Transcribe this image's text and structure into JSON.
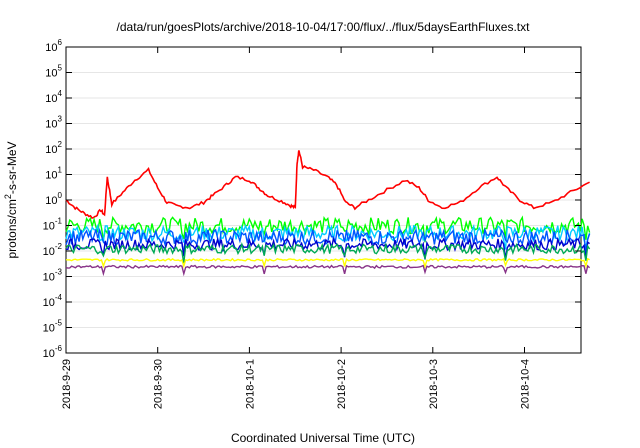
{
  "chart_data": {
    "type": "line",
    "title": "/data/run/goesPlots/archive/2018-10-04/17:00/flux/../flux/5daysEarthFluxes.txt",
    "xlabel": "Coordinated Universal Time (UTC)",
    "ylabel_main": "protons/cm",
    "ylabel_sup": "2",
    "ylabel_rest": "-s-sr-MeV",
    "y_scale": "log",
    "ylim": [
      1e-06,
      1000000.0
    ],
    "xlim": [
      "2018-09-29",
      "2018-10-04 17:00"
    ],
    "y_ticks": [
      {
        "base": "10",
        "exp": "-6",
        "value": 1e-06
      },
      {
        "base": "10",
        "exp": "-5",
        "value": 1e-05
      },
      {
        "base": "10",
        "exp": "-4",
        "value": 0.0001
      },
      {
        "base": "10",
        "exp": "-3",
        "value": 0.001
      },
      {
        "base": "10",
        "exp": "-2",
        "value": 0.01
      },
      {
        "base": "10",
        "exp": "-1",
        "value": 0.1
      },
      {
        "base": "10",
        "exp": "0",
        "value": 1
      },
      {
        "base": "10",
        "exp": "1",
        "value": 10
      },
      {
        "base": "10",
        "exp": "2",
        "value": 100
      },
      {
        "base": "10",
        "exp": "3",
        "value": 1000
      },
      {
        "base": "10",
        "exp": "4",
        "value": 10000
      },
      {
        "base": "10",
        "exp": "5",
        "value": 100000
      },
      {
        "base": "10",
        "exp": "6",
        "value": 1000000
      }
    ],
    "x_ticks": [
      {
        "label": "2018-9-29",
        "day": 0
      },
      {
        "label": "2018-9-30",
        "day": 1
      },
      {
        "label": "2018-10-1",
        "day": 2
      },
      {
        "label": "2018-10-2",
        "day": 3
      },
      {
        "label": "2018-10-3",
        "day": 4
      },
      {
        "label": "2018-10-4",
        "day": 5
      }
    ],
    "series": [
      {
        "color": "#ff0000",
        "kind": "red",
        "points": [
          [
            0,
            1.0
          ],
          [
            0.1,
            0.5
          ],
          [
            0.2,
            0.3
          ],
          [
            0.3,
            0.2
          ],
          [
            0.38,
            0.4
          ],
          [
            0.42,
            0.25
          ],
          [
            0.45,
            8.0
          ],
          [
            0.5,
            0.7
          ],
          [
            0.62,
            2.0
          ],
          [
            0.75,
            6.0
          ],
          [
            0.9,
            15.0
          ],
          [
            1.0,
            3.0
          ],
          [
            1.1,
            0.8
          ],
          [
            1.2,
            0.6
          ],
          [
            1.35,
            0.5
          ],
          [
            1.5,
            0.8
          ],
          [
            1.6,
            1.5
          ],
          [
            1.75,
            4.0
          ],
          [
            1.85,
            8.0
          ],
          [
            2.0,
            6.0
          ],
          [
            2.1,
            3.0
          ],
          [
            2.2,
            1.5
          ],
          [
            2.35,
            0.9
          ],
          [
            2.45,
            0.6
          ],
          [
            2.5,
            0.5
          ],
          [
            2.52,
            30.0
          ],
          [
            2.54,
            90.0
          ],
          [
            2.58,
            20.0
          ],
          [
            2.7,
            15.0
          ],
          [
            2.85,
            8.0
          ],
          [
            2.95,
            4.0
          ],
          [
            3.05,
            0.8
          ],
          [
            3.15,
            0.5
          ],
          [
            3.3,
            1.0
          ],
          [
            3.5,
            2.5
          ],
          [
            3.7,
            6.0
          ],
          [
            3.85,
            3.0
          ],
          [
            3.95,
            1.0
          ],
          [
            4.1,
            0.5
          ],
          [
            4.3,
            0.8
          ],
          [
            4.5,
            3.0
          ],
          [
            4.7,
            8.0
          ],
          [
            4.8,
            3.0
          ],
          [
            4.95,
            1.0
          ],
          [
            5.1,
            0.5
          ],
          [
            5.3,
            0.8
          ],
          [
            5.5,
            2.0
          ],
          [
            5.71,
            5.0
          ]
        ]
      },
      {
        "color": "#00ff00",
        "kind": "noisy",
        "mean": 0.1,
        "spread": 0.32
      },
      {
        "color": "#00ccff",
        "kind": "noisy",
        "mean": 0.05,
        "spread": 0.3
      },
      {
        "color": "#0055ff",
        "kind": "noisy",
        "mean": 0.035,
        "spread": 0.3
      },
      {
        "color": "#0000cc",
        "kind": "noisy",
        "mean": 0.018,
        "spread": 0.22
      },
      {
        "color": "#00aa55",
        "kind": "noisy",
        "mean": 0.012,
        "spread": 0.18
      },
      {
        "color": "#ffff00",
        "kind": "flat",
        "mean": 0.0045,
        "spread": 0.04
      },
      {
        "color": "#883388",
        "kind": "flat",
        "mean": 0.0024,
        "spread": 0.05
      }
    ]
  }
}
